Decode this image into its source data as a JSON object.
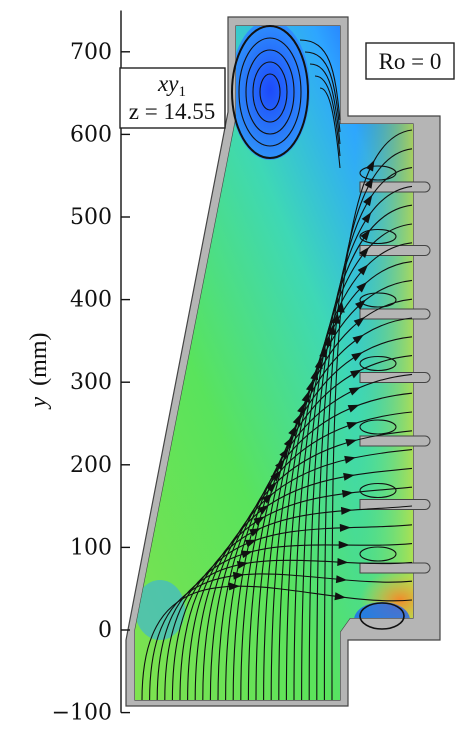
{
  "chart_data": {
    "type": "streamline-contour",
    "ylabel": "y (mm)",
    "ylabel_var": "y",
    "ylabel_unit": "(mm)",
    "ylim": [
      -100,
      750
    ],
    "yticks": [
      700,
      600,
      500,
      400,
      300,
      200,
      100,
      0,
      -100
    ],
    "annotation_section": "xy",
    "annotation_section_sub": "1",
    "annotation_z": "z = 14.55",
    "annotation_ro": "Ro = 0",
    "colormap": [
      "#1a3cff",
      "#2ea6ff",
      "#33e6ea",
      "#59e35c",
      "#9ae63a",
      "#d8e23a",
      "#f2a531"
    ],
    "wall_color": "#b5b5b5",
    "slot_count": 7,
    "streamlines": true
  }
}
